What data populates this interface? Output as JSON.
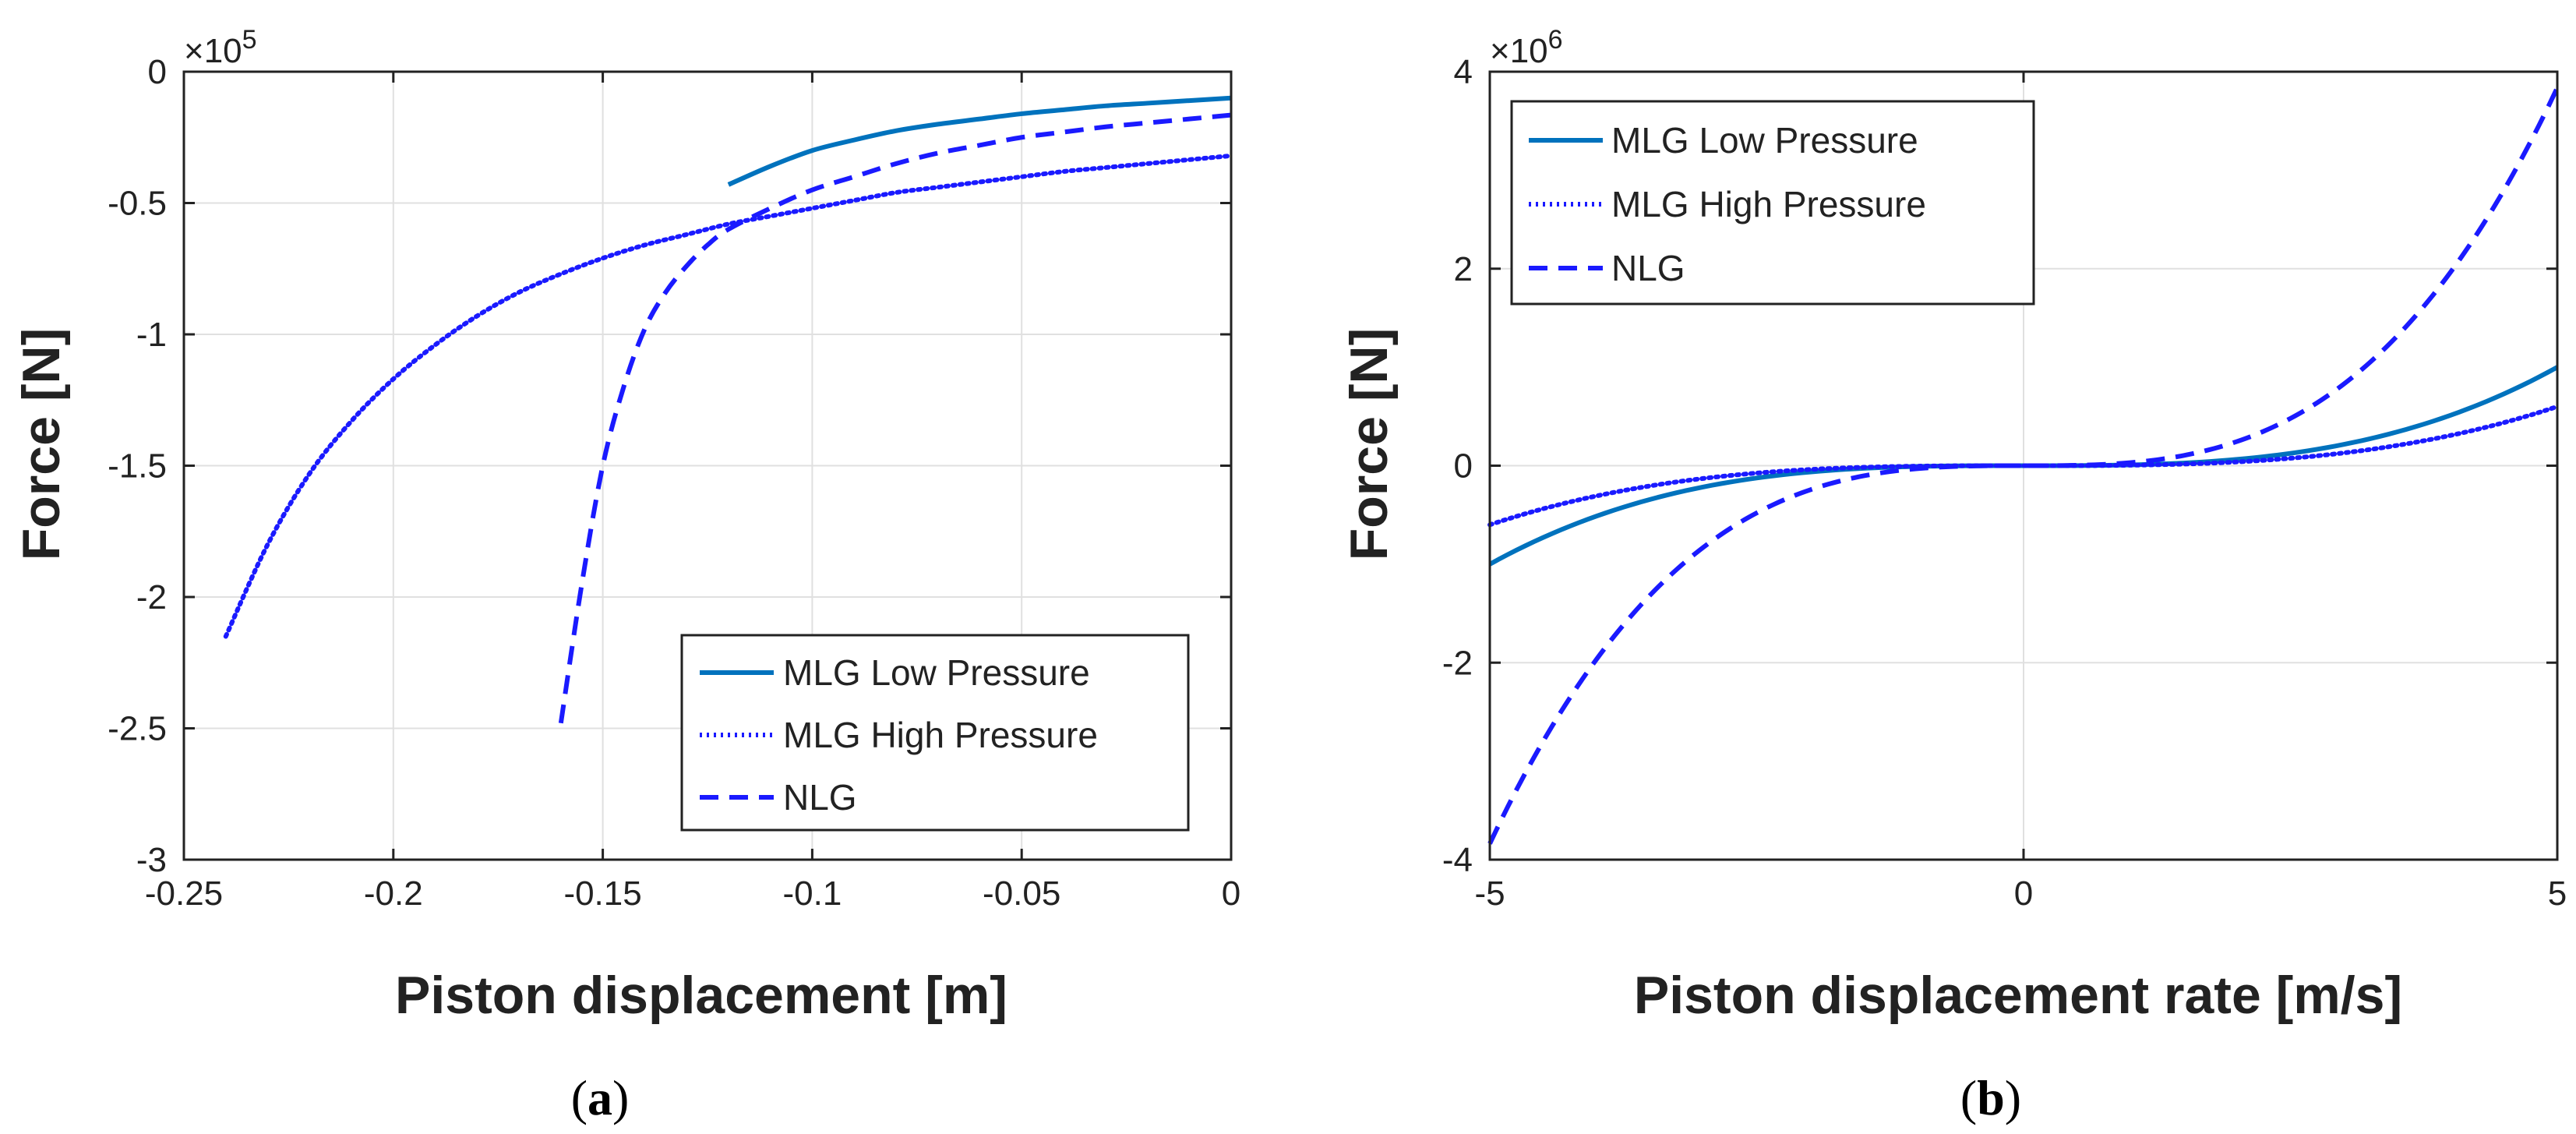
{
  "colors": {
    "mlg_low": "#0072BD",
    "mlg_high": "#1a1aff",
    "nlg": "#1a1aff",
    "grid": "#e0e0e0",
    "axis": "#222222"
  },
  "chart_data": [
    {
      "id": "a",
      "caption_open": "(",
      "caption_letter": "a",
      "caption_close": ")",
      "type": "line",
      "xlabel": "Piston displacement [m]",
      "ylabel": "Force [N]",
      "y_exponent_base": "×10",
      "y_exponent_power": "5",
      "xlim": [
        -0.25,
        0
      ],
      "ylim": [
        -3,
        0
      ],
      "xticks": [
        -0.25,
        -0.2,
        -0.15,
        -0.1,
        -0.05,
        0
      ],
      "xtick_labels": [
        "-0.25",
        "-0.2",
        "-0.15",
        "-0.1",
        "-0.05",
        "0"
      ],
      "yticks": [
        0,
        -0.5,
        -1,
        -1.5,
        -2,
        -2.5,
        -3
      ],
      "ytick_labels": [
        "0",
        "-0.5",
        "-1",
        "-1.5",
        "-2",
        "-2.5",
        "-3"
      ],
      "grid": true,
      "legend_position": "bottom-right",
      "series": [
        {
          "name": "MLG Low Pressure",
          "style": "solid",
          "x": [
            -0.12,
            -0.11,
            -0.1,
            -0.09,
            -0.08,
            -0.07,
            -0.06,
            -0.05,
            -0.04,
            -0.03,
            -0.02,
            -0.01,
            0
          ],
          "y": [
            -0.43,
            -0.36,
            -0.3,
            -0.26,
            -0.225,
            -0.2,
            -0.18,
            -0.16,
            -0.145,
            -0.13,
            -0.12,
            -0.11,
            -0.1
          ]
        },
        {
          "name": "MLG High Pressure",
          "style": "dotted",
          "x": [
            -0.24,
            -0.23,
            -0.22,
            -0.21,
            -0.2,
            -0.19,
            -0.18,
            -0.17,
            -0.16,
            -0.15,
            -0.14,
            -0.13,
            -0.12,
            -0.11,
            -0.1,
            -0.09,
            -0.08,
            -0.07,
            -0.06,
            -0.05,
            -0.04,
            -0.03,
            -0.02,
            -0.01,
            0
          ],
          "y": [
            -2.15,
            -1.8,
            -1.53,
            -1.33,
            -1.17,
            -1.04,
            -0.93,
            -0.84,
            -0.77,
            -0.71,
            -0.66,
            -0.62,
            -0.58,
            -0.55,
            -0.52,
            -0.49,
            -0.46,
            -0.44,
            -0.42,
            -0.4,
            -0.38,
            -0.365,
            -0.35,
            -0.335,
            -0.32
          ]
        },
        {
          "name": "NLG",
          "style": "dashed",
          "x": [
            -0.16,
            -0.155,
            -0.15,
            -0.145,
            -0.14,
            -0.135,
            -0.13,
            -0.125,
            -0.12,
            -0.11,
            -0.1,
            -0.09,
            -0.08,
            -0.07,
            -0.06,
            -0.05,
            -0.04,
            -0.03,
            -0.02,
            -0.01,
            0
          ],
          "y": [
            -2.48,
            -1.95,
            -1.5,
            -1.2,
            -0.98,
            -0.84,
            -0.74,
            -0.66,
            -0.6,
            -0.52,
            -0.45,
            -0.4,
            -0.35,
            -0.31,
            -0.28,
            -0.25,
            -0.23,
            -0.21,
            -0.195,
            -0.18,
            -0.165
          ]
        }
      ]
    },
    {
      "id": "b",
      "caption_open": "(",
      "caption_letter": "b",
      "caption_close": ")",
      "type": "line",
      "xlabel": "Piston displacement rate [m/s]",
      "ylabel": "Force [N]",
      "y_exponent_base": "×10",
      "y_exponent_power": "6",
      "xlim": [
        -5,
        5
      ],
      "ylim": [
        -4,
        4
      ],
      "xticks": [
        -5,
        0,
        5
      ],
      "xtick_labels": [
        "-5",
        "0",
        "5"
      ],
      "yticks": [
        4,
        2,
        0,
        -2,
        -4
      ],
      "ytick_labels": [
        "4",
        "2",
        "0",
        "-2",
        "-4"
      ],
      "grid": true,
      "legend_position": "top-left",
      "series": [
        {
          "name": "MLG Low Pressure",
          "style": "solid",
          "coef": 0.008,
          "power": 3
        },
        {
          "name": "MLG High Pressure",
          "style": "dotted",
          "coef": 0.0048,
          "power": 3
        },
        {
          "name": "NLG",
          "style": "dashed",
          "coef": 0.0307,
          "power": 3
        }
      ]
    }
  ]
}
